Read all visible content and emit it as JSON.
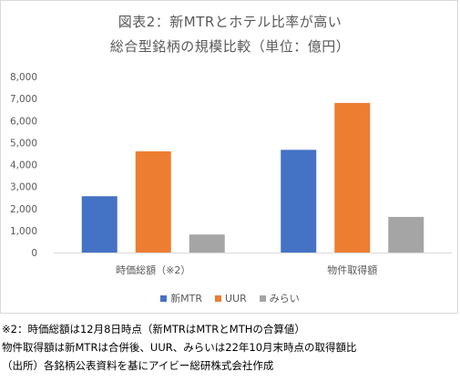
{
  "chart_data": {
    "type": "bar",
    "title": "図表2：新MTRとホテル比率が高い",
    "subtitle": "総合型銘柄の規模比較（単位：億円）",
    "categories": [
      "時価総額（※2）",
      "物件取得額"
    ],
    "series": [
      {
        "name": "新MTR",
        "color": "#4472c4",
        "values": [
          2560,
          4670
        ]
      },
      {
        "name": "UUR",
        "color": "#ed7d31",
        "values": [
          4600,
          6800
        ]
      },
      {
        "name": "みらい",
        "color": "#a5a5a5",
        "values": [
          820,
          1620
        ]
      }
    ],
    "ylim": [
      0,
      8000
    ],
    "yticks": [
      0,
      1000,
      2000,
      3000,
      4000,
      5000,
      6000,
      7000,
      8000
    ],
    "ytick_labels": [
      "0",
      "1,000",
      "2,000",
      "3,000",
      "4,000",
      "5,000",
      "6,000",
      "7,000",
      "8,000"
    ],
    "grid": false,
    "legend_position": "bottom"
  },
  "notes": [
    "※2：時価総額は12月8日時点（新MTRはMTRとMTHの合算値）",
    "物件取得額は新MTRは合併後、UUR、みらいは22年10月末時点の取得額比",
    "（出所）各銘柄公表資料を基にアイビー総研株式会社作成"
  ]
}
